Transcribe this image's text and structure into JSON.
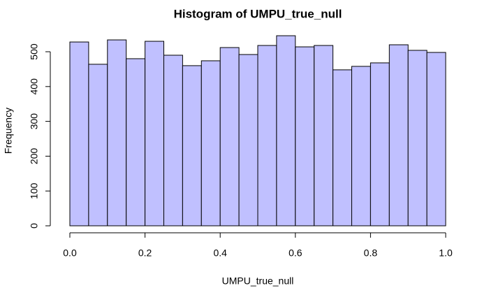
{
  "chart_data": {
    "type": "histogram",
    "title": "Histogram of UMPU_true_null",
    "x_label": "UMPU_true_null",
    "y_label": "Frequency",
    "bins": [
      0,
      0.05,
      0.1,
      0.15,
      0.2,
      0.25,
      0.3,
      0.35,
      0.4,
      0.45,
      0.5,
      0.55,
      0.6,
      0.65,
      0.7,
      0.75,
      0.8,
      0.85,
      0.9,
      0.95,
      1
    ],
    "values": [
      528,
      464,
      534,
      480,
      530,
      490,
      460,
      474,
      512,
      492,
      518,
      546,
      514,
      518,
      448,
      458,
      468,
      520,
      504,
      498
    ],
    "color": "#c0c0ff",
    "xlim": [
      0,
      1
    ],
    "xticks": [
      {
        "value": 0,
        "label": "0.0"
      },
      0.2,
      0.4,
      0.6,
      0.8,
      {
        "value": 1,
        "label": "1.0"
      }
    ],
    "ylim": [
      0,
      550
    ],
    "yticks": [
      0,
      100,
      200,
      300,
      400,
      500
    ]
  }
}
